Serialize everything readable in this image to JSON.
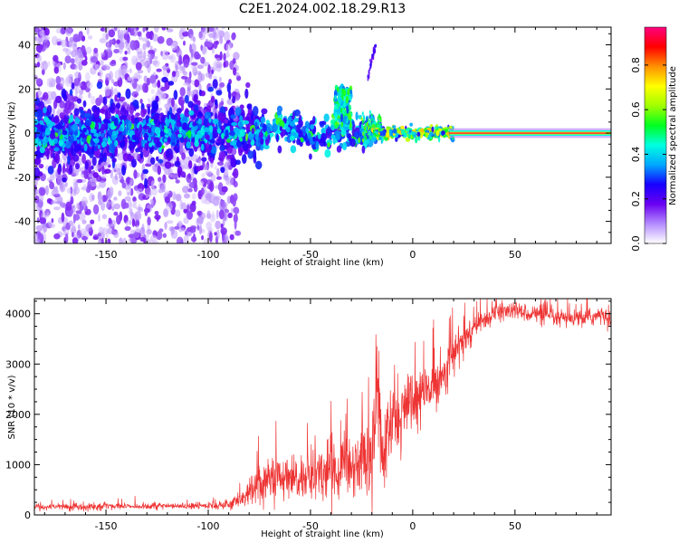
{
  "title": "C2E1.2024.002.18.29.R13",
  "chart_data": [
    {
      "type": "heatmap",
      "name": "spectrogram",
      "xlabel": "Height of straight line (km)",
      "ylabel": "Frequency (Hz)",
      "xlim": [
        -185,
        97
      ],
      "ylim": [
        -50,
        48
      ],
      "xticks": [
        -150,
        -100,
        -50,
        0,
        50
      ],
      "yticks": [
        -40,
        -20,
        0,
        20,
        40
      ],
      "xtick_labels": [
        "-150",
        "-100",
        "-50",
        "0",
        "50"
      ],
      "ytick_labels": [
        "-40",
        "-20",
        "0",
        "20",
        "40"
      ],
      "features": [
        {
          "name": "diffuse scatter",
          "x": [
            -185,
            -85
          ],
          "freq": [
            -50,
            48
          ],
          "amplitude": [
            0.05,
            0.2
          ]
        },
        {
          "name": "main trace",
          "x": [
            -185,
            97
          ],
          "freq_center": 0,
          "amplitude": [
            0.1,
            1.0
          ]
        },
        {
          "name": "excursion",
          "x": [
            -38,
            -30
          ],
          "freq": [
            0,
            20
          ],
          "amplitude": [
            0.3,
            0.6
          ]
        },
        {
          "name": "excursion",
          "x": [
            -22,
            -18
          ],
          "freq": [
            25,
            40
          ],
          "amplitude": [
            0.1,
            0.3
          ]
        },
        {
          "name": "stable line",
          "x": [
            20,
            97
          ],
          "freq": 0,
          "amplitude": [
            0.8,
            1.0
          ]
        }
      ],
      "colorbar": {
        "label": "Normalized spectral amplitude",
        "range": [
          0.0,
          0.97
        ],
        "ticks": [
          0.0,
          0.2,
          0.4,
          0.6,
          0.8
        ],
        "tick_labels": [
          "0.0",
          "0.2",
          "0.4",
          "0.6",
          "0.8"
        ],
        "colors": [
          "#ffffff",
          "#b48cff",
          "#6a00f0",
          "#1800ff",
          "#00a8ff",
          "#00ffe0",
          "#00ff20",
          "#a0ff00",
          "#ffff00",
          "#ff9000",
          "#ff0000",
          "#ff0080"
        ]
      }
    },
    {
      "type": "line",
      "name": "snr",
      "xlabel": "Height of straight line (km)",
      "ylabel": "SNR (10 * v/v)",
      "xlim": [
        -185,
        97
      ],
      "ylim": [
        0,
        4300
      ],
      "xticks": [
        -150,
        -100,
        -50,
        0,
        50
      ],
      "yticks": [
        0,
        1000,
        2000,
        3000,
        4000
      ],
      "xtick_labels": [
        "-150",
        "-100",
        "-50",
        "0",
        "50"
      ],
      "ytick_labels": [
        "0",
        "1000",
        "2000",
        "3000",
        "4000"
      ],
      "series": [
        {
          "name": "SNR",
          "color": "#ee3333",
          "x": [
            -185,
            -160,
            -140,
            -120,
            -100,
            -90,
            -85,
            -80,
            -75,
            -70,
            -65,
            -60,
            -55,
            -50,
            -45,
            -40,
            -35,
            -30,
            -25,
            -20,
            -17,
            -15,
            -12,
            -10,
            -5,
            0,
            5,
            10,
            15,
            20,
            25,
            30,
            35,
            40,
            45,
            50,
            60,
            70,
            80,
            90,
            97
          ],
          "values": [
            150,
            170,
            180,
            170,
            180,
            220,
            300,
            420,
            600,
            750,
            700,
            650,
            700,
            800,
            850,
            900,
            950,
            1000,
            1100,
            1200,
            2600,
            1100,
            1500,
            1900,
            2000,
            2200,
            2400,
            2600,
            2800,
            3200,
            3500,
            3700,
            3900,
            4000,
            4050,
            4050,
            4000,
            3900,
            3900,
            3950,
            3950
          ],
          "noise_amplitude": [
            80,
            80,
            80,
            80,
            80,
            120,
            200,
            350,
            450,
            500,
            500,
            500,
            550,
            600,
            600,
            650,
            700,
            700,
            800,
            900,
            1400,
            900,
            1000,
            1000,
            900,
            800,
            700,
            600,
            550,
            450,
            350,
            300,
            250,
            200,
            200,
            200,
            200,
            200,
            200,
            200,
            200
          ]
        }
      ]
    }
  ]
}
